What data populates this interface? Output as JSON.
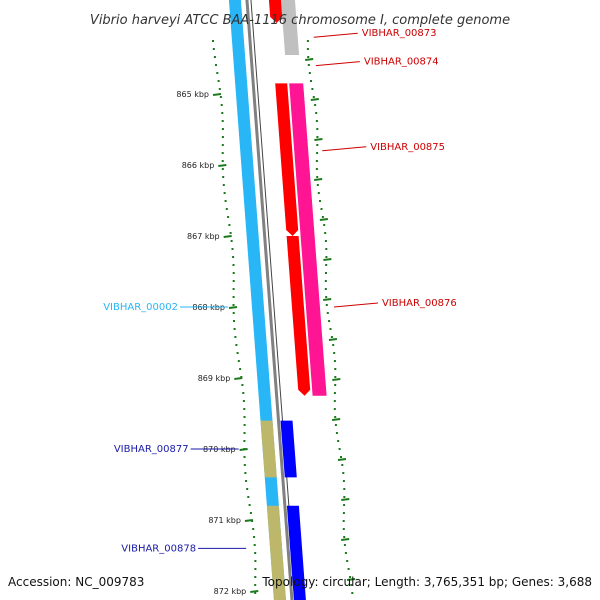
{
  "title": "Vibrio harveyi ATCC BAA-1116 chromosome I, complete genome",
  "footer": {
    "accession": "Accession: NC_009783",
    "topology": "Topology: circular; Length: 3,765,351 bp; Genes: 3,688"
  },
  "colors": {
    "forward_gene": "#ff0000",
    "forward_cds": "#ff1493",
    "reverse_gene": "#0000ff",
    "reverse_cds": "#bdb76b",
    "rrna": "#29b6f6",
    "pseudo": "#c0c0c0",
    "gc_skew": "#1b7a1b",
    "backbone": "#808080",
    "label_forward": "#cc0000",
    "label_reverse": "#1a1aa8",
    "label_rrna": "#29b6f6"
  },
  "ticks": [
    {
      "label": "865 kbp",
      "kbp": 865
    },
    {
      "label": "866 kbp",
      "kbp": 866
    },
    {
      "label": "867 kbp",
      "kbp": 867
    },
    {
      "label": "868 kbp",
      "kbp": 868
    },
    {
      "label": "869 kbp",
      "kbp": 869
    },
    {
      "label": "870 kbp",
      "kbp": 870
    },
    {
      "label": "871 kbp",
      "kbp": 871
    },
    {
      "label": "872 kbp",
      "kbp": 872
    }
  ],
  "labels": [
    {
      "text": "VIBHAR_00873",
      "kbp": 864.2,
      "side": "right",
      "type": "forward"
    },
    {
      "text": "VIBHAR_00874",
      "kbp": 864.6,
      "side": "right",
      "type": "forward"
    },
    {
      "text": "VIBHAR_00875",
      "kbp": 865.8,
      "side": "right",
      "type": "forward"
    },
    {
      "text": "VIBHAR_00876",
      "kbp": 868.0,
      "side": "right",
      "type": "forward"
    },
    {
      "text": "VIBHAR_00002",
      "kbp": 868.0,
      "side": "left",
      "type": "rrna"
    },
    {
      "text": "VIBHAR_00877",
      "kbp": 870.0,
      "side": "left",
      "type": "reverse"
    },
    {
      "text": "VIBHAR_00878",
      "kbp": 871.4,
      "side": "left",
      "type": "reverse"
    }
  ],
  "tracks": {
    "forward_genes": [
      {
        "start": 863.5,
        "end": 864.0
      },
      {
        "start": 864.85,
        "end": 867.0
      },
      {
        "start": 867.0,
        "end": 869.25
      }
    ],
    "forward_cds": [
      {
        "start": 864.85,
        "end": 867.0
      },
      {
        "start": 867.0,
        "end": 869.25
      }
    ],
    "pseudo": [
      {
        "start": 863.5,
        "end": 864.45
      }
    ],
    "reverse_genes": [
      {
        "start": 869.6,
        "end": 870.4
      },
      {
        "start": 870.8,
        "end": 872.2
      }
    ],
    "reverse_cds": [
      {
        "start": 869.6,
        "end": 870.4
      },
      {
        "start": 870.8,
        "end": 872.2
      }
    ],
    "rrna": [
      {
        "start": 863.3,
        "end": 872.3
      }
    ]
  }
}
